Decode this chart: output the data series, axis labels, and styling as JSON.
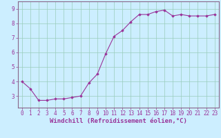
{
  "x": [
    0,
    1,
    2,
    3,
    4,
    5,
    6,
    7,
    8,
    9,
    10,
    11,
    12,
    13,
    14,
    15,
    16,
    17,
    18,
    19,
    20,
    21,
    22,
    23
  ],
  "y": [
    4.0,
    3.5,
    2.7,
    2.7,
    2.8,
    2.8,
    2.9,
    3.0,
    3.9,
    4.5,
    5.9,
    7.1,
    7.5,
    8.1,
    8.6,
    8.6,
    8.8,
    8.9,
    8.5,
    8.6,
    8.5,
    8.5,
    8.5,
    8.6
  ],
  "xlabel": "Windchill (Refroidissement éolien,°C)",
  "ylim": [
    2.2,
    9.5
  ],
  "xlim": [
    -0.5,
    23.5
  ],
  "yticks": [
    3,
    4,
    5,
    6,
    7,
    8,
    9
  ],
  "xticks": [
    0,
    1,
    2,
    3,
    4,
    5,
    6,
    7,
    8,
    9,
    10,
    11,
    12,
    13,
    14,
    15,
    16,
    17,
    18,
    19,
    20,
    21,
    22,
    23
  ],
  "line_color": "#993399",
  "marker": "D",
  "markersize": 1.8,
  "linewidth": 0.8,
  "bg_color": "#cceeff",
  "grid_color": "#99ccbb",
  "xlabel_fontsize": 6.5,
  "tick_fontsize": 5.5,
  "label_color": "#993399",
  "spine_color": "#886688"
}
